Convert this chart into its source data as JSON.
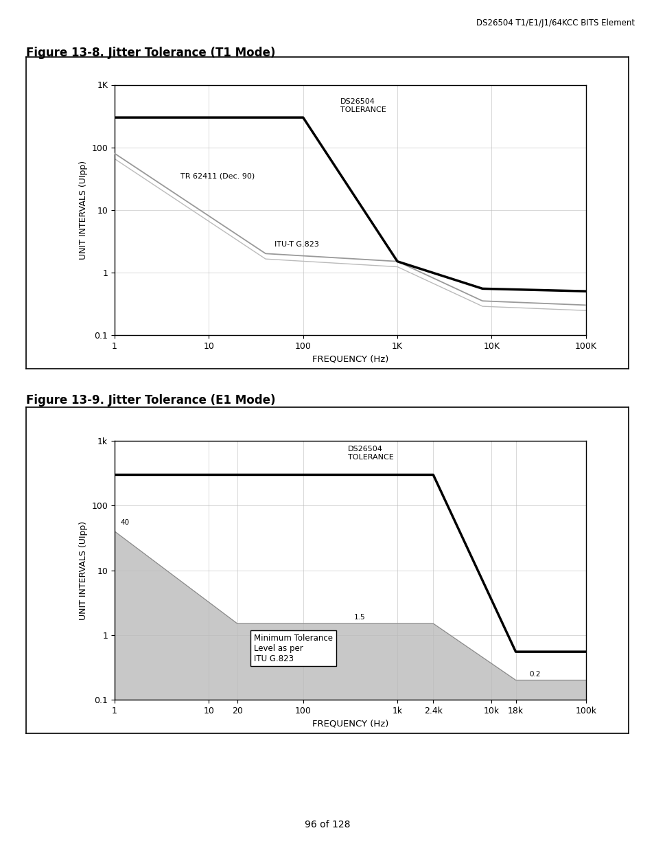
{
  "page_header": "DS26504 T1/E1/J1/64KCC BITS Element",
  "page_footer": "96 of 128",
  "fig1_title": "Figure 13-8. Jitter Tolerance (T1 Mode)",
  "fig1_xlabel": "FREQUENCY (Hz)",
  "fig1_ylabel": "UNIT INTERVALS (UIpp)",
  "fig1_xticks": [
    1,
    10,
    100,
    1000,
    10000,
    100000
  ],
  "fig1_xticklabels": [
    "1",
    "10",
    "100",
    "1K",
    "10K",
    "100K"
  ],
  "fig1_yticks": [
    0.1,
    1,
    10,
    100,
    1000
  ],
  "fig1_yticklabels": [
    "0.1",
    "1",
    "10",
    "100",
    "1K"
  ],
  "fig1_xlim": [
    1,
    100000
  ],
  "fig1_ylim": [
    0.1,
    1000
  ],
  "fig1_ds_x": [
    1,
    100,
    1000,
    8000,
    100000
  ],
  "fig1_ds_y": [
    300,
    300,
    1.5,
    0.55,
    0.5
  ],
  "fig1_tr_x": [
    1,
    40,
    1000,
    8000,
    100000
  ],
  "fig1_tr_y": [
    80,
    2.0,
    1.5,
    0.35,
    0.3
  ],
  "fig1_itu_x": [
    1,
    40,
    1000,
    8000,
    100000
  ],
  "fig1_itu_y": [
    80,
    2.0,
    1.5,
    0.35,
    0.3
  ],
  "fig2_title": "Figure 13-9. Jitter Tolerance (E1 Mode)",
  "fig2_xlabel": "FREQUENCY (Hz)",
  "fig2_ylabel": "UNIT INTERVALS (UIpp)",
  "fig2_xticks": [
    1,
    10,
    20,
    100,
    1000,
    2400,
    10000,
    18000,
    100000
  ],
  "fig2_xticklabels": [
    "1",
    "10",
    "20",
    "100",
    "1k",
    "2.4k",
    "10k",
    "18k",
    "100k"
  ],
  "fig2_yticks": [
    0.1,
    1,
    10,
    100,
    1000
  ],
  "fig2_yticklabels": [
    "0.1",
    "1",
    "10",
    "100",
    "1k"
  ],
  "fig2_xlim": [
    1,
    100000
  ],
  "fig2_ylim": [
    0.1,
    1000
  ],
  "fig2_ds_x": [
    1,
    100,
    2400,
    18000,
    100000
  ],
  "fig2_ds_y": [
    300,
    300,
    300,
    0.55,
    0.55
  ],
  "fig2_itu_x": [
    1,
    20,
    2400,
    18000,
    100000
  ],
  "fig2_itu_y": [
    40,
    1.5,
    1.5,
    0.2,
    0.2
  ],
  "fig2_shade_x": [
    1,
    20,
    2400,
    18000,
    100000,
    100000,
    1
  ],
  "fig2_shade_y": [
    40,
    1.5,
    1.5,
    0.2,
    0.2,
    0.1,
    0.1
  ]
}
